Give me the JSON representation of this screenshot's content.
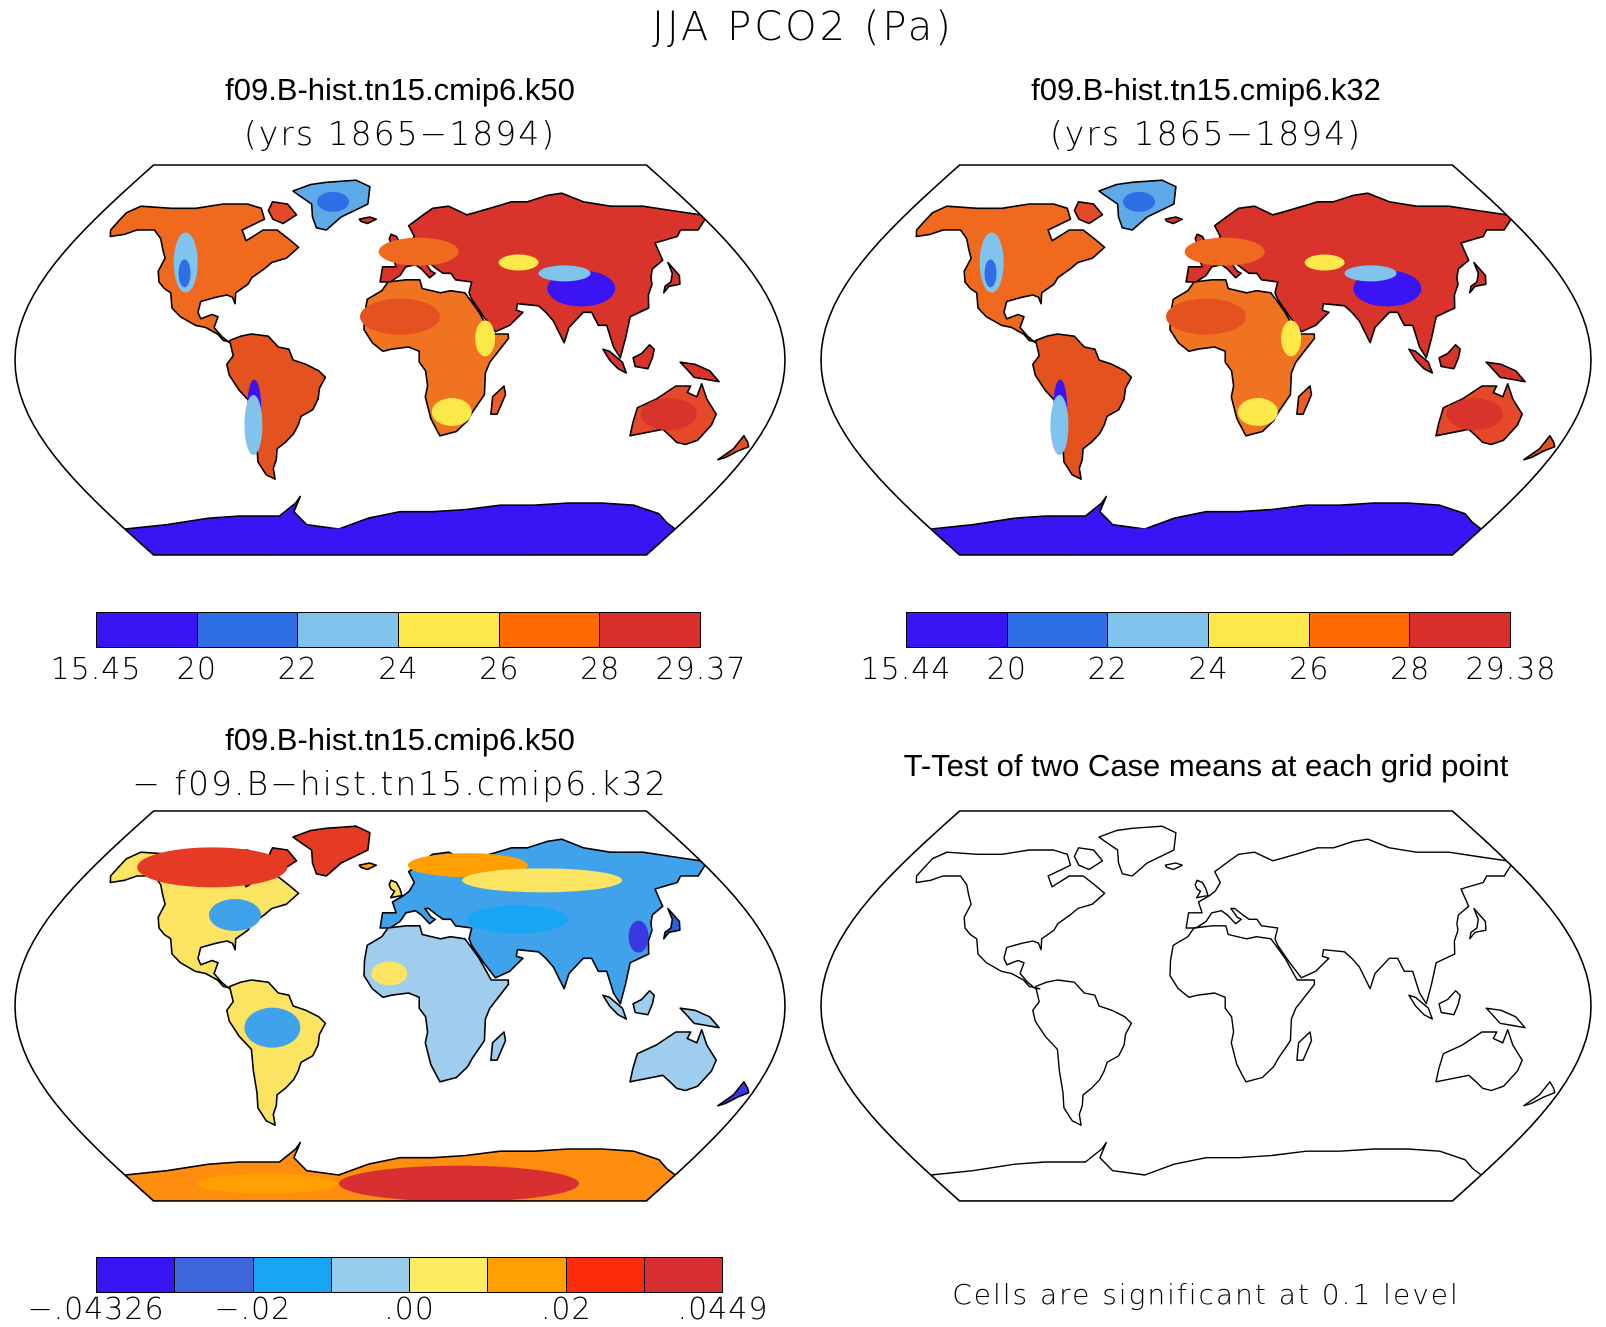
{
  "title": "JJA PCO2 (Pa)",
  "panels": [
    {
      "id": "p1",
      "title": "f09.B-hist.tn15.cmip6.k50",
      "subtitle": "(yrs 1865−1894)"
    },
    {
      "id": "p2",
      "title": "f09.B-hist.tn15.cmip6.k32",
      "subtitle": "(yrs 1865−1894)"
    },
    {
      "id": "p3",
      "title": "f09.B-hist.tn15.cmip6.k50",
      "subtitle": "− f09.B−hist.tn15.cmip6.k32"
    },
    {
      "id": "p4",
      "title": "T-Test of two Case means at each grid point",
      "subtitle": ""
    }
  ],
  "colorbars": {
    "p1": {
      "labels": [
        "15.45",
        "20",
        "22",
        "24",
        "26",
        "28",
        "29.37"
      ],
      "colors": [
        "#3a14f5",
        "#2f6fe6",
        "#80c4ee",
        "#fde84a",
        "#ff6a00",
        "#d9302c"
      ]
    },
    "p2": {
      "labels": [
        "15.44",
        "20",
        "22",
        "24",
        "26",
        "28",
        "29.38"
      ],
      "colors": [
        "#3a14f5",
        "#2f6fe6",
        "#80c4ee",
        "#fde84a",
        "#ff6a00",
        "#d9302c"
      ]
    },
    "p3": {
      "labels": [
        "−.04326",
        "−.02",
        ".00",
        ".02",
        ".0449"
      ],
      "label_slots": [
        0,
        2,
        4,
        6,
        8
      ],
      "colors": [
        "#3a14f5",
        "#3f66dd",
        "#16a6f4",
        "#98ccec",
        "#fcec61",
        "#ff9f00",
        "#ff2c0c",
        "#d83030"
      ]
    }
  },
  "note": "Cells are significant at 0.1 level"
}
